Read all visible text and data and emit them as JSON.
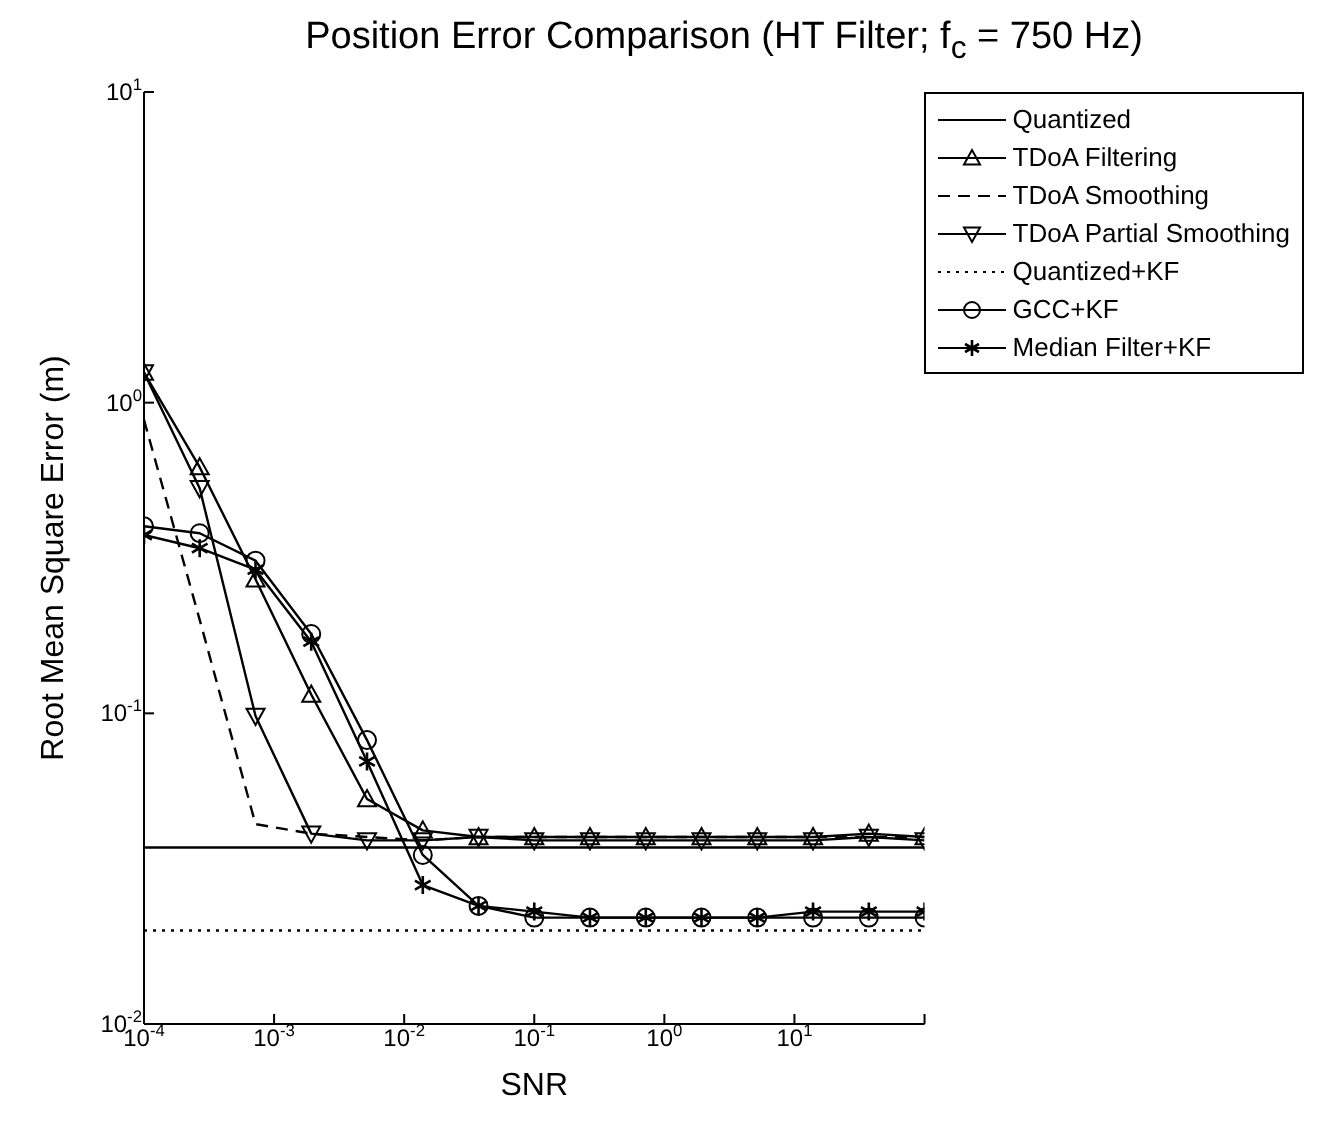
{
  "chart_data": {
    "type": "line",
    "title": "Position Error Comparison (HT Filter; f$_{c}$ = 750 Hz)",
    "xlabel": "SNR",
    "ylabel": "Root Mean Square Error (m)",
    "log": "xy",
    "legend": "top right",
    "x": [
      0.0001,
      0.000268,
      0.00072,
      0.00193,
      0.00518,
      0.0139,
      0.0373,
      0.1,
      0.268,
      0.72,
      1.93,
      5.18,
      13.9,
      37.3,
      100
    ],
    "xlim": [
      0.0001,
      100
    ],
    "ylim": [
      0.01,
      10
    ],
    "xticks": [
      {
        "value": 0.0001,
        "label": "10$^{-4}$"
      },
      {
        "value": 0.001,
        "label": "10$^{-3}$"
      },
      {
        "value": 0.01,
        "label": "10$^{-2}$"
      },
      {
        "value": 0.1,
        "label": "10$^{-1}$"
      },
      {
        "value": 1,
        "label": "10$^{0}$"
      },
      {
        "value": 10,
        "label": "10$^{1}$"
      },
      {
        "value": 100,
        "label": null
      }
    ],
    "yticks": [
      {
        "value": 0.01,
        "label": "10$^{-2}$"
      },
      {
        "value": 0.1,
        "label": "10$^{-1}$"
      },
      {
        "value": 1,
        "label": "10$^{0}$"
      },
      {
        "value": 10,
        "label": "10$^{1}$"
      }
    ],
    "series": [
      {
        "name": "Quantized",
        "color": "#000000",
        "marker": "none",
        "line_style": "solid",
        "values": [
          0.037,
          0.037,
          0.037,
          0.037,
          0.037,
          0.037,
          0.037,
          0.037,
          0.037,
          0.037,
          0.037,
          0.037,
          0.037,
          0.037,
          0.037
        ]
      },
      {
        "name": "TDoA Filtering",
        "color": "#000000",
        "marker": "triangle",
        "line_style": "solid",
        "values": [
          1.25,
          0.62,
          0.27,
          0.115,
          0.053,
          0.042,
          0.04,
          0.04,
          0.04,
          0.04,
          0.04,
          0.04,
          0.04,
          0.041,
          0.04
        ]
      },
      {
        "name": "TDoA Smoothing",
        "color": "#000000",
        "marker": "none",
        "line_style": "dashed",
        "values": [
          0.88,
          0.2,
          0.044,
          0.041,
          0.04,
          0.039,
          0.04,
          0.04,
          0.04,
          0.04,
          0.04,
          0.04,
          0.04,
          0.04,
          0.04
        ]
      },
      {
        "name": "TDoA Partial Smoothing",
        "color": "#000000",
        "marker": "triangle-down",
        "line_style": "solid",
        "values": [
          1.25,
          0.53,
          0.098,
          0.041,
          0.039,
          0.039,
          0.04,
          0.039,
          0.039,
          0.039,
          0.039,
          0.039,
          0.039,
          0.04,
          0.039
        ]
      },
      {
        "name": "Quantized+KF",
        "color": "#000000",
        "marker": "none",
        "line_style": "dotted",
        "values": [
          0.02,
          0.02,
          0.02,
          0.02,
          0.02,
          0.02,
          0.02,
          0.02,
          0.02,
          0.02,
          0.02,
          0.02,
          0.02,
          0.02,
          0.02
        ]
      },
      {
        "name": "GCC+KF",
        "color": "#000000",
        "marker": "circle",
        "line_style": "solid",
        "values": [
          0.4,
          0.38,
          0.31,
          0.18,
          0.082,
          0.035,
          0.024,
          0.022,
          0.022,
          0.022,
          0.022,
          0.022,
          0.022,
          0.022,
          0.022
        ]
      },
      {
        "name": "Median Filter+KF",
        "color": "#000000",
        "marker": "cross",
        "line_style": "solid",
        "values": [
          0.375,
          0.34,
          0.29,
          0.17,
          0.07,
          0.028,
          0.024,
          0.023,
          0.022,
          0.022,
          0.022,
          0.022,
          0.023,
          0.023,
          0.023
        ]
      }
    ]
  }
}
